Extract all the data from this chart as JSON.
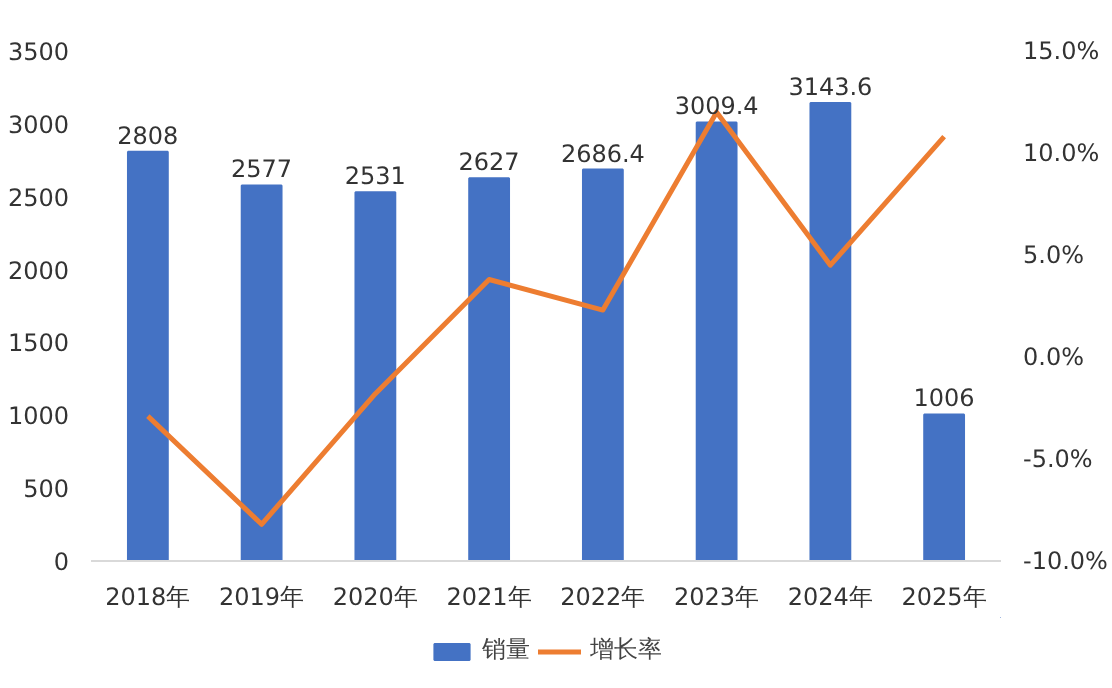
{
  "chart_data": {
    "type": "bar",
    "categories": [
      "2018年",
      "2019年",
      "2020年",
      "2021年",
      "2022年",
      "2023年",
      "2024年",
      "2025年"
    ],
    "series": [
      {
        "name": "销量",
        "color": "#4472c4",
        "values": [
          2808,
          2577,
          2531,
          2627,
          2686.4,
          3009.4,
          3143.6,
          1006
        ],
        "value_labels": [
          "2808",
          "2577",
          "2531",
          "2627",
          "2686.4",
          "3009.4",
          "3143.6",
          "1006"
        ]
      },
      {
        "name": "增长率",
        "type": "line",
        "axis": "y2",
        "color": "#ed7d31",
        "values": [
          -2.9,
          -8.2,
          -1.8,
          3.8,
          2.3,
          12.0,
          4.5,
          10.8
        ]
      }
    ],
    "ylim": [
      0,
      3500
    ],
    "yticks": [
      0,
      500,
      1000,
      1500,
      2000,
      2500,
      3000,
      3500
    ],
    "y2lim": [
      -10,
      15
    ],
    "y2ticks": [
      {
        "value": -10,
        "label": "-10.0%"
      },
      {
        "value": -5,
        "label": "-5.0%"
      },
      {
        "value": 0,
        "label": "0.0%"
      },
      {
        "value": 5,
        "label": "5.0%"
      },
      {
        "value": 10,
        "label": "10.0%"
      },
      {
        "value": 15,
        "label": "15.0%"
      }
    ],
    "grid": false,
    "legend": "bottom",
    "marker": "none",
    "line_style": "solid"
  }
}
